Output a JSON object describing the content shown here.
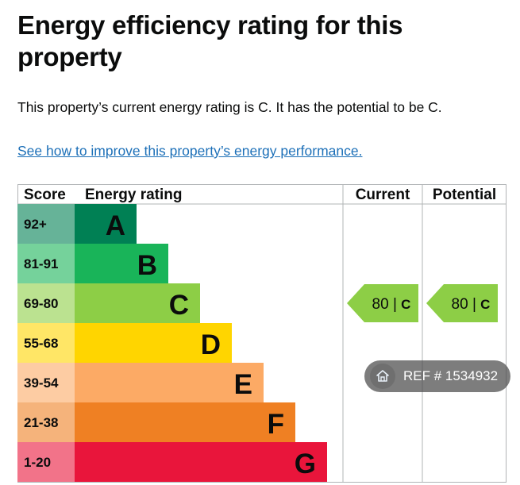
{
  "page": {
    "title": "Energy efficiency rating for this property",
    "summary": "This property’s current energy rating is C. It has the potential to be C.",
    "improve_link": "See how to improve this property’s energy performance."
  },
  "chart_data": {
    "type": "table",
    "headers": {
      "score": "Score",
      "rating": "Energy rating",
      "current": "Current",
      "potential": "Potential"
    },
    "bands": [
      {
        "score": "92+",
        "letter": "A",
        "color": "#008054",
        "score_bg": "#66b398"
      },
      {
        "score": "81-91",
        "letter": "B",
        "color": "#19b459",
        "score_bg": "#75d29b"
      },
      {
        "score": "69-80",
        "letter": "C",
        "color": "#8dce46",
        "score_bg": "#bbe290"
      },
      {
        "score": "55-68",
        "letter": "D",
        "color": "#ffd500",
        "score_bg": "#ffe666"
      },
      {
        "score": "39-54",
        "letter": "E",
        "color": "#fcaa65",
        "score_bg": "#fdcca3"
      },
      {
        "score": "21-38",
        "letter": "F",
        "color": "#ef8023",
        "score_bg": "#f5b37b"
      },
      {
        "score": "1-20",
        "letter": "G",
        "color": "#e9153b",
        "score_bg": "#f27389"
      }
    ],
    "current": {
      "value": 80,
      "letter": "C",
      "band": "C",
      "color": "#8dce46"
    },
    "potential": {
      "value": 80,
      "letter": "C",
      "band": "C",
      "color": "#8dce46"
    }
  },
  "watermark": {
    "text": "REF # 1534932",
    "icon": "home-icon"
  }
}
